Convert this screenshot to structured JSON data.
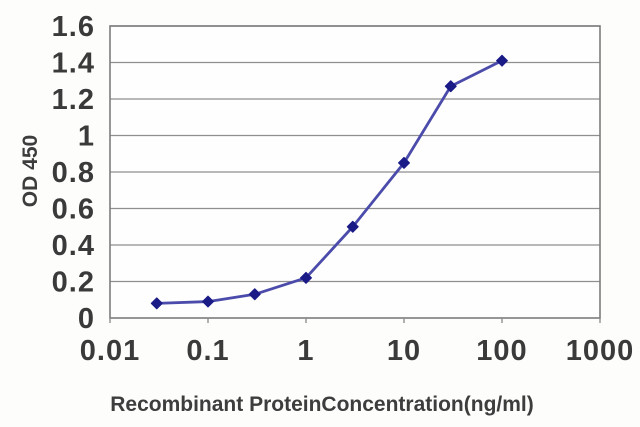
{
  "chart_data": {
    "type": "line",
    "title": "",
    "xlabel": "Recombinant ProteinConcentration(ng/ml)",
    "ylabel": "OD 450",
    "x_scale": "log",
    "xlim": [
      0.01,
      1000
    ],
    "ylim": [
      0,
      1.6
    ],
    "x_ticks": [
      0.01,
      0.1,
      1,
      10,
      100,
      1000
    ],
    "x_tick_labels": [
      "0.01",
      "0.1",
      "1",
      "10",
      "100",
      "1000"
    ],
    "y_ticks": [
      0,
      0.2,
      0.4,
      0.6,
      0.8,
      1,
      1.2,
      1.4,
      1.6
    ],
    "y_tick_labels": [
      "0",
      "0.2",
      "0.4",
      "0.6",
      "0.8",
      "1",
      "1.2",
      "1.4",
      "1.6"
    ],
    "grid": "horizontal",
    "legend": "none",
    "series": [
      {
        "name": "OD 450",
        "x": [
          0.03,
          0.1,
          0.3,
          1,
          3,
          10,
          30,
          100
        ],
        "y": [
          0.08,
          0.09,
          0.13,
          0.22,
          0.5,
          0.85,
          1.27,
          1.41
        ]
      }
    ],
    "colors": {
      "line": "#4b4bab",
      "marker": "#1b1b87",
      "grid": "#8f8f8f",
      "border": "#7c7c7c",
      "tick": "#8f8f8f",
      "text": "#3a3a3a",
      "plot_bg": "#fefefe",
      "page_bg": "#fdfdfc"
    }
  }
}
